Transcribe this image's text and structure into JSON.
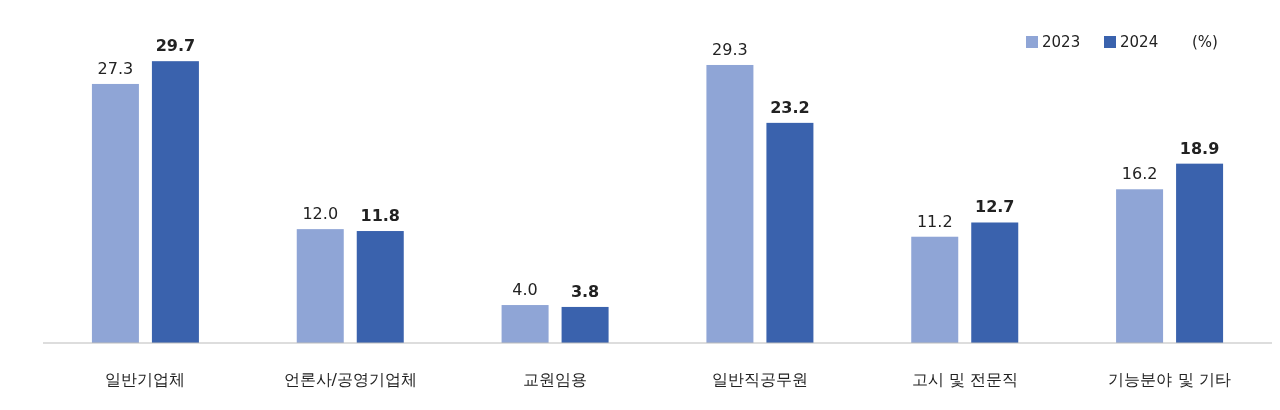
{
  "chart_data": {
    "type": "bar",
    "categories": [
      "일반기업체",
      "언론사/공영기업체",
      "교원임용",
      "일반직공무원",
      "고시 및 전문직",
      "기능분야 및 기타"
    ],
    "series": [
      {
        "name": "2023",
        "color": "#8fa5d6",
        "values": [
          27.3,
          12.0,
          4.0,
          29.3,
          11.2,
          16.2
        ],
        "value_labels": [
          "27.3",
          "12.0",
          "4.0",
          "29.3",
          "11.2",
          "16.2"
        ]
      },
      {
        "name": "2024",
        "color": "#3a62ad",
        "values": [
          29.7,
          11.8,
          3.8,
          23.2,
          12.7,
          18.9
        ],
        "value_labels": [
          "29.7",
          "11.8",
          "3.8",
          "23.2",
          "12.7",
          "18.9"
        ]
      }
    ],
    "legend": "top right",
    "grid": false,
    "annotations": [
      "(%)"
    ]
  }
}
